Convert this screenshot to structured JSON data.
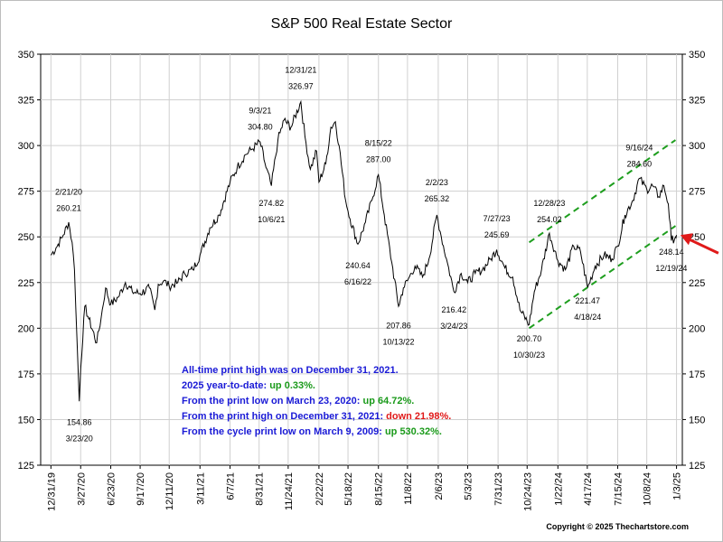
{
  "title": "S&P 500 Real Estate Sector",
  "copyright": "Copyright © 2025 Thechartstore.com",
  "notes": [
    {
      "text": "All-time print high was on December 31, 2021.",
      "suffix": "",
      "suffix_color": ""
    },
    {
      "text": "2025 year-to-date:",
      "suffix": " up 0.33%.",
      "suffix_color": "green"
    },
    {
      "text": "From the print low on March 23, 2020:",
      "suffix": "  up 64.72%.",
      "suffix_color": "green"
    },
    {
      "text": "From the print high on December 31, 2021:",
      "suffix": "  down 21.98%.",
      "suffix_color": "red"
    },
    {
      "text": "From the cycle print low on March 9, 2009:",
      "suffix": "  up 530.32%.",
      "suffix_color": "green"
    }
  ],
  "colors": {
    "text_blue": "#1a1ad6",
    "up_green": "#1a9a1a",
    "down_red": "#e01a1a",
    "channel": "#1e9e1e",
    "arrow": "#e01a1a",
    "price": "#000000"
  },
  "chart_data": {
    "type": "line",
    "title": "S&P 500 Real Estate Sector",
    "x_type": "date",
    "xlim": [
      "2019-12-01",
      "2025-01-20"
    ],
    "ylim": [
      125,
      350
    ],
    "y_ticks": [
      125,
      150,
      175,
      200,
      225,
      250,
      275,
      300,
      325,
      350
    ],
    "x_tick_labels": [
      "12/31/19",
      "3/27/20",
      "6/23/20",
      "9/17/20",
      "12/11/20",
      "3/11/21",
      "6/7/21",
      "8/31/21",
      "11/24/21",
      "2/22/22",
      "5/18/22",
      "8/15/22",
      "11/8/22",
      "2/6/23",
      "5/3/23",
      "7/31/23",
      "10/24/23",
      "1/22/24",
      "4/17/24",
      "7/15/24",
      "10/8/24",
      "1/3/25"
    ],
    "x_tick_dates": [
      "2019-12-31",
      "2020-03-27",
      "2020-06-23",
      "2020-09-17",
      "2020-12-11",
      "2021-03-11",
      "2021-06-07",
      "2021-08-31",
      "2021-11-24",
      "2022-02-22",
      "2022-05-18",
      "2022-08-15",
      "2022-11-08",
      "2023-02-06",
      "2023-05-03",
      "2023-07-31",
      "2023-10-24",
      "2024-01-22",
      "2024-04-17",
      "2024-07-15",
      "2024-10-08",
      "2025-01-03"
    ],
    "grid": true,
    "y_axis_both_sides": true,
    "series": [
      {
        "points": [
          [
            "2019-12-31",
            240
          ],
          [
            "2020-01-15",
            244
          ],
          [
            "2020-02-05",
            251
          ],
          [
            "2020-02-21",
            258
          ],
          [
            "2020-03-02",
            247
          ],
          [
            "2020-03-09",
            232
          ],
          [
            "2020-03-16",
            195
          ],
          [
            "2020-03-23",
            160
          ],
          [
            "2020-03-27",
            178
          ],
          [
            "2020-04-08",
            212
          ],
          [
            "2020-04-20",
            205
          ],
          [
            "2020-05-13",
            192
          ],
          [
            "2020-05-26",
            206
          ],
          [
            "2020-06-08",
            222
          ],
          [
            "2020-06-23",
            213
          ],
          [
            "2020-07-15",
            217
          ],
          [
            "2020-08-05",
            225
          ],
          [
            "2020-08-25",
            220
          ],
          [
            "2020-09-17",
            219
          ],
          [
            "2020-10-14",
            222
          ],
          [
            "2020-10-30",
            210
          ],
          [
            "2020-11-09",
            224
          ],
          [
            "2020-11-25",
            226
          ],
          [
            "2020-12-11",
            223
          ],
          [
            "2021-01-05",
            225
          ],
          [
            "2021-01-25",
            230
          ],
          [
            "2021-02-18",
            232
          ],
          [
            "2021-03-11",
            240
          ],
          [
            "2021-04-09",
            255
          ],
          [
            "2021-05-06",
            262
          ],
          [
            "2021-06-07",
            280
          ],
          [
            "2021-06-28",
            288
          ],
          [
            "2021-07-22",
            295
          ],
          [
            "2021-08-10",
            298
          ],
          [
            "2021-09-03",
            302
          ],
          [
            "2021-09-20",
            288
          ],
          [
            "2021-10-06",
            278
          ],
          [
            "2021-10-25",
            303
          ],
          [
            "2021-11-12",
            314
          ],
          [
            "2021-12-02",
            310
          ],
          [
            "2021-12-31",
            324
          ],
          [
            "2022-01-12",
            305
          ],
          [
            "2022-01-28",
            287
          ],
          [
            "2022-02-15",
            297
          ],
          [
            "2022-02-22",
            280
          ],
          [
            "2022-03-14",
            290
          ],
          [
            "2022-03-29",
            310
          ],
          [
            "2022-04-11",
            313
          ],
          [
            "2022-04-22",
            300
          ],
          [
            "2022-05-11",
            270
          ],
          [
            "2022-05-18",
            264
          ],
          [
            "2022-06-16",
            246
          ],
          [
            "2022-07-08",
            258
          ],
          [
            "2022-07-27",
            270
          ],
          [
            "2022-08-15",
            284
          ],
          [
            "2022-09-01",
            262
          ],
          [
            "2022-09-23",
            236
          ],
          [
            "2022-10-13",
            212
          ],
          [
            "2022-10-27",
            222
          ],
          [
            "2022-11-08",
            226
          ],
          [
            "2022-11-30",
            234
          ],
          [
            "2022-12-22",
            228
          ],
          [
            "2023-01-10",
            238
          ],
          [
            "2023-02-02",
            262
          ],
          [
            "2023-02-15",
            250
          ],
          [
            "2023-03-02",
            238
          ],
          [
            "2023-03-24",
            220
          ],
          [
            "2023-04-14",
            230
          ],
          [
            "2023-05-03",
            225
          ],
          [
            "2023-05-25",
            230
          ],
          [
            "2023-06-15",
            232
          ],
          [
            "2023-07-10",
            238
          ],
          [
            "2023-07-27",
            243
          ],
          [
            "2023-08-20",
            233
          ],
          [
            "2023-09-12",
            228
          ],
          [
            "2023-10-03",
            210
          ],
          [
            "2023-10-30",
            202
          ],
          [
            "2023-11-14",
            220
          ],
          [
            "2023-12-05",
            232
          ],
          [
            "2023-12-28",
            252
          ],
          [
            "2024-01-22",
            237
          ],
          [
            "2024-02-13",
            232
          ],
          [
            "2024-03-08",
            245
          ],
          [
            "2024-03-28",
            242
          ],
          [
            "2024-04-18",
            222
          ],
          [
            "2024-05-10",
            234
          ],
          [
            "2024-06-05",
            240
          ],
          [
            "2024-06-28",
            238
          ],
          [
            "2024-07-15",
            245
          ],
          [
            "2024-08-05",
            262
          ],
          [
            "2024-08-28",
            270
          ],
          [
            "2024-09-16",
            282
          ],
          [
            "2024-10-08",
            276
          ],
          [
            "2024-10-25",
            278
          ],
          [
            "2024-11-12",
            272
          ],
          [
            "2024-11-27",
            278
          ],
          [
            "2024-12-10",
            268
          ],
          [
            "2024-12-19",
            248
          ],
          [
            "2024-12-31",
            250
          ],
          [
            "2025-01-03",
            251
          ]
        ]
      }
    ],
    "annotations": [
      {
        "date": "2/21/20",
        "value": "260.21",
        "x": "2020-02-21",
        "y": 260.21,
        "pos": "above"
      },
      {
        "date": "3/23/20",
        "value": "154.86",
        "x": "2020-03-23",
        "y": 154.86,
        "pos": "below"
      },
      {
        "date": "9/3/21",
        "value": "304.80",
        "x": "2021-09-03",
        "y": 304.8,
        "pos": "above"
      },
      {
        "date": "10/6/21",
        "value": "274.82",
        "x": "2021-10-06",
        "y": 274.82,
        "pos": "below"
      },
      {
        "date": "12/31/21",
        "value": "326.97",
        "x": "2021-12-31",
        "y": 326.97,
        "pos": "above"
      },
      {
        "date": "6/16/22",
        "value": "240.64",
        "x": "2022-06-16",
        "y": 240.64,
        "pos": "below"
      },
      {
        "date": "8/15/22",
        "value": "287.00",
        "x": "2022-08-15",
        "y": 287.0,
        "pos": "above"
      },
      {
        "date": "10/13/22",
        "value": "207.86",
        "x": "2022-10-13",
        "y": 207.86,
        "pos": "below"
      },
      {
        "date": "2/2/23",
        "value": "265.32",
        "x": "2023-02-02",
        "y": 265.32,
        "pos": "above"
      },
      {
        "date": "3/24/23",
        "value": "216.42",
        "x": "2023-03-24",
        "y": 216.42,
        "pos": "below"
      },
      {
        "date": "7/27/23",
        "value": "245.69",
        "x": "2023-07-27",
        "y": 245.69,
        "pos": "above"
      },
      {
        "date": "10/30/23",
        "value": "200.70",
        "x": "2023-10-30",
        "y": 200.7,
        "pos": "below"
      },
      {
        "date": "12/28/23",
        "value": "254.02",
        "x": "2023-12-28",
        "y": 254.02,
        "pos": "above"
      },
      {
        "date": "4/18/24",
        "value": "221.47",
        "x": "2024-04-18",
        "y": 221.47,
        "pos": "below"
      },
      {
        "date": "9/16/24",
        "value": "284.60",
        "x": "2024-09-16",
        "y": 284.6,
        "pos": "above"
      },
      {
        "date": "12/19/24",
        "value": "248.14",
        "x": "2024-12-19",
        "y": 248.14,
        "pos": "below"
      }
    ],
    "trend_channel": [
      {
        "from": [
          "2023-10-30",
          200
        ],
        "to": [
          "2024-12-31",
          256
        ]
      },
      {
        "from": [
          "2023-10-30",
          247
        ],
        "to": [
          "2024-12-31",
          303
        ]
      }
    ]
  }
}
